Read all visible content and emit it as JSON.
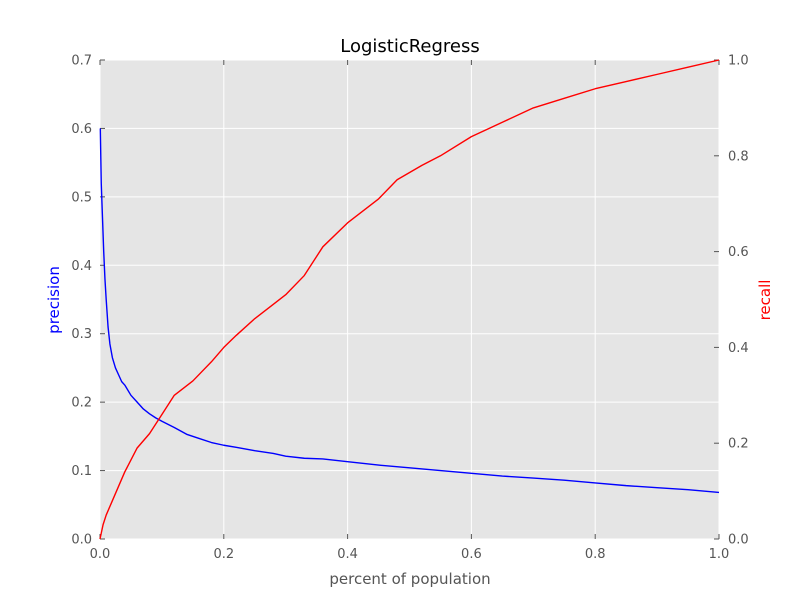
{
  "chart_data": {
    "type": "line",
    "title": "LogisticRegress",
    "xlabel": "percent of population",
    "ylabel_left": "precision",
    "ylabel_right": "recall",
    "xlim": [
      0,
      1.0
    ],
    "ylim_left": [
      0,
      0.7
    ],
    "ylim_right": [
      0,
      1.0
    ],
    "xticks": [
      "0.0",
      "0.2",
      "0.4",
      "0.6",
      "0.8",
      "1.0"
    ],
    "yticks_left": [
      "0.0",
      "0.1",
      "0.2",
      "0.3",
      "0.4",
      "0.5",
      "0.6",
      "0.7"
    ],
    "yticks_right": [
      "0.0",
      "0.2",
      "0.4",
      "0.6",
      "0.8",
      "1.0"
    ],
    "grid": true,
    "background": "#e5e5e5",
    "colors": {
      "precision": "#0000ff",
      "recall": "#ff0000"
    },
    "series": [
      {
        "name": "precision",
        "axis": "left",
        "x": [
          0.0005,
          0.002,
          0.004,
          0.006,
          0.008,
          0.01,
          0.013,
          0.016,
          0.02,
          0.025,
          0.03,
          0.035,
          0.04,
          0.05,
          0.06,
          0.07,
          0.08,
          0.09,
          0.1,
          0.12,
          0.14,
          0.16,
          0.18,
          0.2,
          0.22,
          0.25,
          0.28,
          0.3,
          0.33,
          0.36,
          0.4,
          0.45,
          0.5,
          0.55,
          0.6,
          0.65,
          0.7,
          0.75,
          0.8,
          0.85,
          0.9,
          0.95,
          1.0
        ],
        "y": [
          0.6,
          0.52,
          0.47,
          0.42,
          0.38,
          0.35,
          0.31,
          0.285,
          0.265,
          0.25,
          0.24,
          0.23,
          0.225,
          0.21,
          0.2,
          0.19,
          0.183,
          0.177,
          0.172,
          0.163,
          0.153,
          0.147,
          0.141,
          0.137,
          0.134,
          0.129,
          0.125,
          0.121,
          0.118,
          0.117,
          0.113,
          0.108,
          0.104,
          0.1,
          0.096,
          0.092,
          0.089,
          0.086,
          0.082,
          0.078,
          0.075,
          0.072,
          0.068
        ]
      },
      {
        "name": "recall",
        "axis": "right",
        "x": [
          0.0,
          0.005,
          0.01,
          0.02,
          0.03,
          0.04,
          0.05,
          0.06,
          0.08,
          0.1,
          0.12,
          0.15,
          0.18,
          0.2,
          0.22,
          0.25,
          0.28,
          0.3,
          0.33,
          0.36,
          0.4,
          0.45,
          0.48,
          0.52,
          0.55,
          0.6,
          0.65,
          0.7,
          0.75,
          0.8,
          0.85,
          0.9,
          0.95,
          1.0
        ],
        "y": [
          0.0,
          0.03,
          0.05,
          0.08,
          0.11,
          0.14,
          0.165,
          0.19,
          0.22,
          0.26,
          0.3,
          0.33,
          0.37,
          0.4,
          0.425,
          0.46,
          0.49,
          0.51,
          0.55,
          0.61,
          0.66,
          0.71,
          0.75,
          0.78,
          0.8,
          0.84,
          0.87,
          0.9,
          0.92,
          0.94,
          0.955,
          0.97,
          0.985,
          1.0
        ]
      }
    ]
  }
}
